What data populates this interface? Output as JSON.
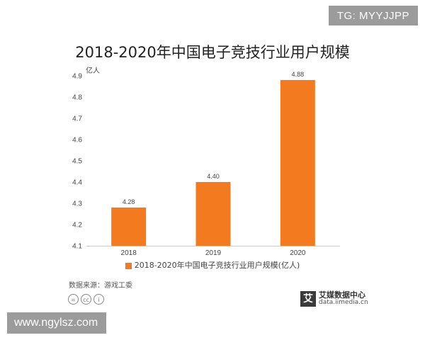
{
  "badge": "TG: MYYJJPP",
  "footer": {
    "source": "数据来源：游戏工委",
    "brand_name": "艾媒数据中心",
    "brand_mark": "艾",
    "brand_url": "data.iimedia.cn",
    "watermark": "www.ngylsz.com",
    "license_icons": [
      "=",
      "cc",
      "i"
    ]
  },
  "chart_data": {
    "type": "bar",
    "title": "2018-2020年中国电子竞技行业用户规模",
    "ylabel": "亿人",
    "categories": [
      "2018",
      "2019",
      "2020"
    ],
    "series": [
      {
        "name": "2018-2020年中国电子竞技行业用户规模(亿人)",
        "values": [
          4.28,
          4.4,
          4.88
        ],
        "labels": [
          "4.28",
          "4.40",
          "4.88"
        ]
      }
    ],
    "ylim": [
      4.1,
      4.9
    ],
    "yticks": [
      "4.1",
      "4.2",
      "4.3",
      "4.4",
      "4.5",
      "4.6",
      "4.7",
      "4.8",
      "4.9"
    ],
    "legend": "bottom",
    "grid": false,
    "bar_color": "#f47a20"
  }
}
